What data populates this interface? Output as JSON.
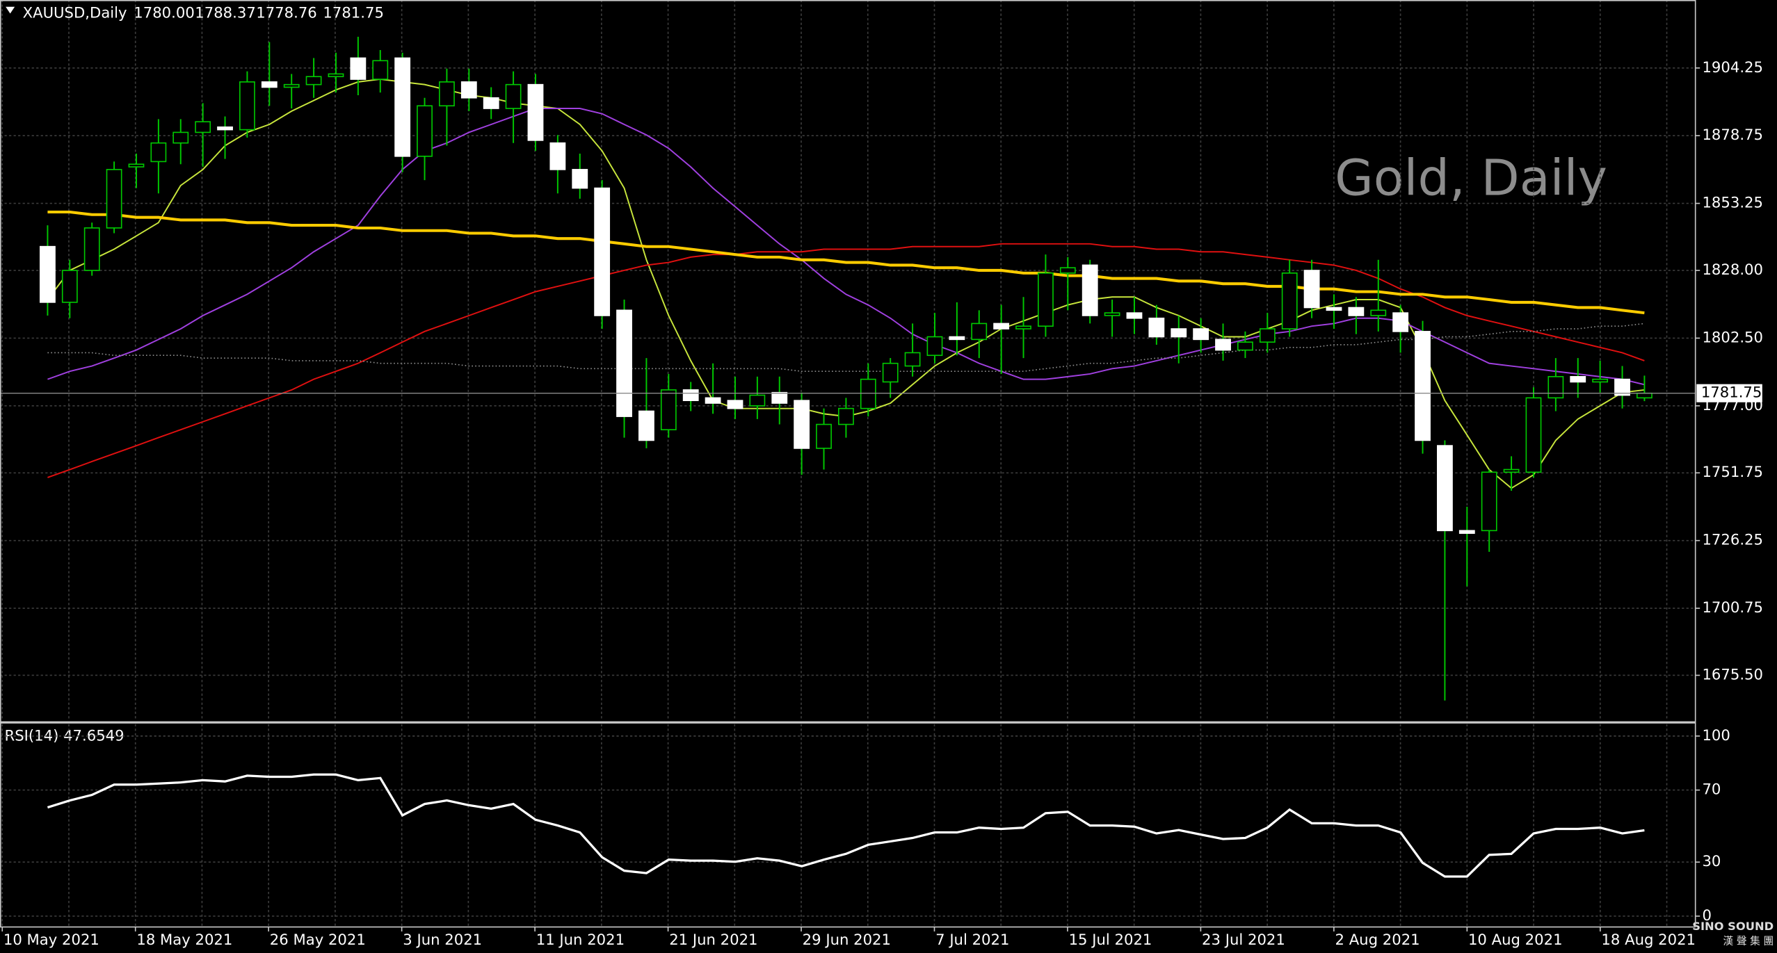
{
  "chart_data": [
    {
      "type": "candlestick",
      "title": "XAUUSD,Daily",
      "header_values": [
        1780,
        1788.37,
        1778.76,
        1781.75
      ],
      "header_value_labels": [
        "1780.00",
        "1788.37",
        "1778.76",
        "1781.75"
      ],
      "watermark": "Gold, Daily",
      "open": [
        1837,
        1816,
        1828,
        1844,
        1867,
        1869,
        1876,
        1880,
        1882,
        1881,
        1899,
        1897,
        1898,
        1901,
        1908,
        1900,
        1908,
        1871,
        1890,
        1899,
        1893,
        1889,
        1898,
        1876,
        1866,
        1859,
        1813,
        1775,
        1768,
        1783,
        1780,
        1779,
        1777,
        1782,
        1779,
        1761,
        1770,
        1776,
        1786,
        1792,
        1796,
        1803,
        1802,
        1808,
        1806,
        1807,
        1827,
        1830,
        1811,
        1812,
        1810,
        1806,
        1806,
        1802,
        1798,
        1801,
        1806,
        1828,
        1814,
        1814,
        1811,
        1812,
        1805,
        1762,
        1730,
        1730,
        1752,
        1752,
        1780,
        1788,
        1786,
        1787,
        1780
      ],
      "high": [
        1845,
        1832,
        1846,
        1869,
        1872,
        1885,
        1885,
        1891,
        1886,
        1903,
        1914,
        1902,
        1908,
        1910,
        1916,
        1911,
        1910,
        1893,
        1904,
        1904,
        1897,
        1903,
        1902,
        1879,
        1872,
        1862,
        1817,
        1795,
        1789,
        1786,
        1793,
        1788,
        1788,
        1788,
        1782,
        1776,
        1780,
        1793,
        1795,
        1808,
        1812,
        1816,
        1813,
        1815,
        1818,
        1834,
        1833,
        1832,
        1817,
        1818,
        1815,
        1811,
        1810,
        1808,
        1805,
        1812,
        1832,
        1832,
        1819,
        1818,
        1832,
        1815,
        1809,
        1764,
        1739,
        1753,
        1758,
        1784,
        1795,
        1795,
        1794,
        1792,
        1788.37
      ],
      "low": [
        1811,
        1810,
        1826,
        1842,
        1859,
        1857,
        1868,
        1867,
        1870,
        1878,
        1890,
        1889,
        1893,
        1895,
        1894,
        1895,
        1865,
        1862,
        1875,
        1888,
        1885,
        1876,
        1873,
        1857,
        1855,
        1806,
        1765,
        1761,
        1765,
        1775,
        1774,
        1772,
        1772,
        1770,
        1751,
        1753,
        1765,
        1773,
        1780,
        1788,
        1793,
        1796,
        1795,
        1789,
        1795,
        1803,
        1813,
        1808,
        1803,
        1804,
        1800,
        1793,
        1797,
        1794,
        1795,
        1797,
        1803,
        1810,
        1806,
        1804,
        1805,
        1797,
        1759,
        1666,
        1709,
        1722,
        1745,
        1750,
        1775,
        1780,
        1782,
        1776,
        1778.76
      ],
      "close": [
        1816,
        1828,
        1844,
        1866,
        1868,
        1876,
        1880,
        1884,
        1881,
        1899,
        1897,
        1898,
        1901,
        1902,
        1900,
        1907,
        1871,
        1890,
        1899,
        1893,
        1889,
        1898,
        1877,
        1866,
        1859,
        1811,
        1773,
        1764,
        1783,
        1779,
        1778,
        1776,
        1781,
        1778,
        1761,
        1770,
        1776,
        1787,
        1793,
        1797,
        1803,
        1802,
        1808,
        1806,
        1807,
        1827,
        1829,
        1811,
        1812,
        1810,
        1803,
        1803,
        1802,
        1798,
        1801,
        1806,
        1827,
        1814,
        1813,
        1811,
        1813,
        1805,
        1764,
        1730,
        1729,
        1752,
        1753,
        1780,
        1788,
        1786,
        1787,
        1781,
        1781.75
      ],
      "up_color": "#000000",
      "down_color": "#ffffff",
      "wick_color": "#00c800",
      "lines": [
        {
          "color": "#c8e63c",
          "width": 1.2,
          "values": [
            1817,
            1828,
            1832,
            1836,
            1841,
            1846,
            1860,
            1866,
            1875,
            1880,
            1883,
            1888,
            1892,
            1896,
            1899,
            1900,
            1899,
            1898,
            1896,
            1894,
            1893,
            1891,
            1890,
            1889,
            1883,
            1873,
            1859,
            1832,
            1811,
            1794,
            1779,
            1776,
            1776,
            1776,
            1776,
            1774,
            1773,
            1775,
            1778,
            1785,
            1792,
            1797,
            1801,
            1806,
            1809,
            1812,
            1815,
            1817,
            1818,
            1818,
            1814,
            1811,
            1807,
            1803,
            1803,
            1806,
            1809,
            1813,
            1815,
            1817,
            1817,
            1814,
            1798,
            1779,
            1766,
            1753,
            1746,
            1751,
            1764,
            1772,
            1777,
            1782,
            1783
          ]
        },
        {
          "color": "#a040e0",
          "width": 1.2,
          "values": [
            1787,
            1790,
            1792,
            1795,
            1798,
            1802,
            1806,
            1811,
            1815,
            1819,
            1824,
            1829,
            1835,
            1840,
            1845,
            1856,
            1866,
            1873,
            1876,
            1880,
            1883,
            1886,
            1889,
            1889,
            1889,
            1887,
            1883,
            1879,
            1874,
            1867,
            1859,
            1852,
            1845,
            1838,
            1832,
            1825,
            1819,
            1815,
            1810,
            1804,
            1800,
            1797,
            1793,
            1790,
            1787,
            1787,
            1788,
            1789,
            1791,
            1792,
            1794,
            1796,
            1798,
            1800,
            1802,
            1804,
            1805,
            1807,
            1808,
            1810,
            1810,
            1809,
            1805,
            1801,
            1797,
            1793,
            1792,
            1791,
            1790,
            1789,
            1788,
            1787,
            1785
          ]
        },
        {
          "color": "#e01010",
          "width": 1.2,
          "values": [
            1750,
            1753,
            1756,
            1759,
            1762,
            1765,
            1768,
            1771,
            1774,
            1777,
            1780,
            1783,
            1787,
            1790,
            1793,
            1797,
            1801,
            1805,
            1808,
            1811,
            1814,
            1817,
            1820,
            1822,
            1824,
            1826,
            1828,
            1830,
            1831,
            1833,
            1834,
            1834,
            1835,
            1835,
            1835,
            1836,
            1836,
            1836,
            1836,
            1837,
            1837,
            1837,
            1837,
            1838,
            1838,
            1838,
            1838,
            1838,
            1837,
            1837,
            1836,
            1836,
            1835,
            1835,
            1834,
            1833,
            1832,
            1831,
            1830,
            1828,
            1825,
            1821,
            1818,
            1814,
            1811,
            1809,
            1807,
            1805,
            1803,
            1801,
            1799,
            1797,
            1794
          ]
        },
        {
          "color": "#ffcc00",
          "width": 2.5,
          "values": [
            1850,
            1850,
            1849,
            1849,
            1848,
            1848,
            1847,
            1847,
            1847,
            1846,
            1846,
            1845,
            1845,
            1845,
            1844,
            1844,
            1843,
            1843,
            1843,
            1842,
            1842,
            1841,
            1841,
            1840,
            1840,
            1839,
            1838,
            1837,
            1837,
            1836,
            1835,
            1834,
            1833,
            1833,
            1832,
            1832,
            1831,
            1831,
            1830,
            1830,
            1829,
            1829,
            1828,
            1828,
            1827,
            1827,
            1826,
            1826,
            1825,
            1825,
            1825,
            1824,
            1824,
            1823,
            1823,
            1822,
            1822,
            1821,
            1821,
            1820,
            1820,
            1819,
            1819,
            1818,
            1818,
            1817,
            1816,
            1816,
            1815,
            1814,
            1814,
            1813,
            1812
          ]
        },
        {
          "color": "#909090",
          "width": 1,
          "dash": "1 2",
          "values": [
            1797,
            1797,
            1797,
            1796,
            1796,
            1796,
            1796,
            1795,
            1795,
            1795,
            1795,
            1794,
            1794,
            1794,
            1794,
            1793,
            1793,
            1793,
            1793,
            1792,
            1792,
            1792,
            1792,
            1792,
            1791,
            1791,
            1791,
            1791,
            1791,
            1791,
            1791,
            1791,
            1791,
            1791,
            1790,
            1790,
            1790,
            1790,
            1790,
            1790,
            1790,
            1790,
            1790,
            1790,
            1790,
            1791,
            1792,
            1793,
            1793,
            1794,
            1795,
            1795,
            1796,
            1797,
            1798,
            1798,
            1799,
            1799,
            1800,
            1800,
            1801,
            1802,
            1802,
            1803,
            1803,
            1804,
            1805,
            1805,
            1806,
            1806,
            1807,
            1807,
            1808
          ]
        }
      ],
      "ylim": [
        1658.4,
        1929.0
      ],
      "yticks": [
        1904.25,
        1878.75,
        1853.25,
        {
          "value": 1828,
          "label": "1828.00"
        },
        {
          "value": 1802.5,
          "label": "1802.50"
        },
        {
          "value": 1777,
          "label": "1777.00"
        },
        1751.75,
        1726.25,
        1700.75,
        {
          "value": 1675.5,
          "label": "1675.50"
        }
      ],
      "grid": true,
      "x_labels": [
        "10 May 2021",
        "18 May 2021",
        "26 May 2021",
        "3 Jun 2021",
        "11 Jun 2021",
        "21 Jun 2021",
        "29 Jun 2021",
        "7 Jul 2021",
        "15 Jul 2021",
        "23 Jul 2021",
        "2 Aug 2021",
        "10 Aug 2021",
        "18 Aug 2021"
      ]
    },
    {
      "type": "line",
      "title": "RSI(14) 47.6549",
      "series": [
        {
          "color": "#ffffff",
          "values": [
            60.4,
            64.2,
            67.3,
            73.0,
            73.0,
            73.6,
            74.2,
            75.5,
            74.8,
            78.0,
            77.4,
            77.4,
            78.6,
            78.6,
            75.5,
            76.7,
            56.0,
            62.3,
            64.2,
            61.6,
            59.7,
            62.3,
            53.5,
            50.3,
            46.5,
            32.7,
            25.2,
            23.9,
            31.4,
            30.8,
            30.8,
            30.2,
            32.1,
            30.8,
            27.7,
            31.4,
            34.6,
            39.6,
            41.5,
            43.4,
            46.5,
            46.5,
            49.1,
            48.4,
            49.1,
            57.2,
            57.9,
            50.3,
            50.3,
            49.7,
            45.9,
            47.8,
            45.3,
            42.8,
            43.4,
            49.1,
            59.1,
            51.6,
            51.6,
            50.3,
            50.3,
            46.5,
            29.6,
            22.0,
            22.0,
            34.0,
            34.6,
            45.9,
            48.4,
            48.4,
            49.1,
            45.9,
            47.65
          ]
        }
      ],
      "ylim": [
        -6,
        106
      ],
      "yticks": [
        100,
        70,
        30,
        0
      ]
    }
  ],
  "logo": {
    "name": "SINO SOUND",
    "subtitle": "漢 聲 集 團"
  }
}
